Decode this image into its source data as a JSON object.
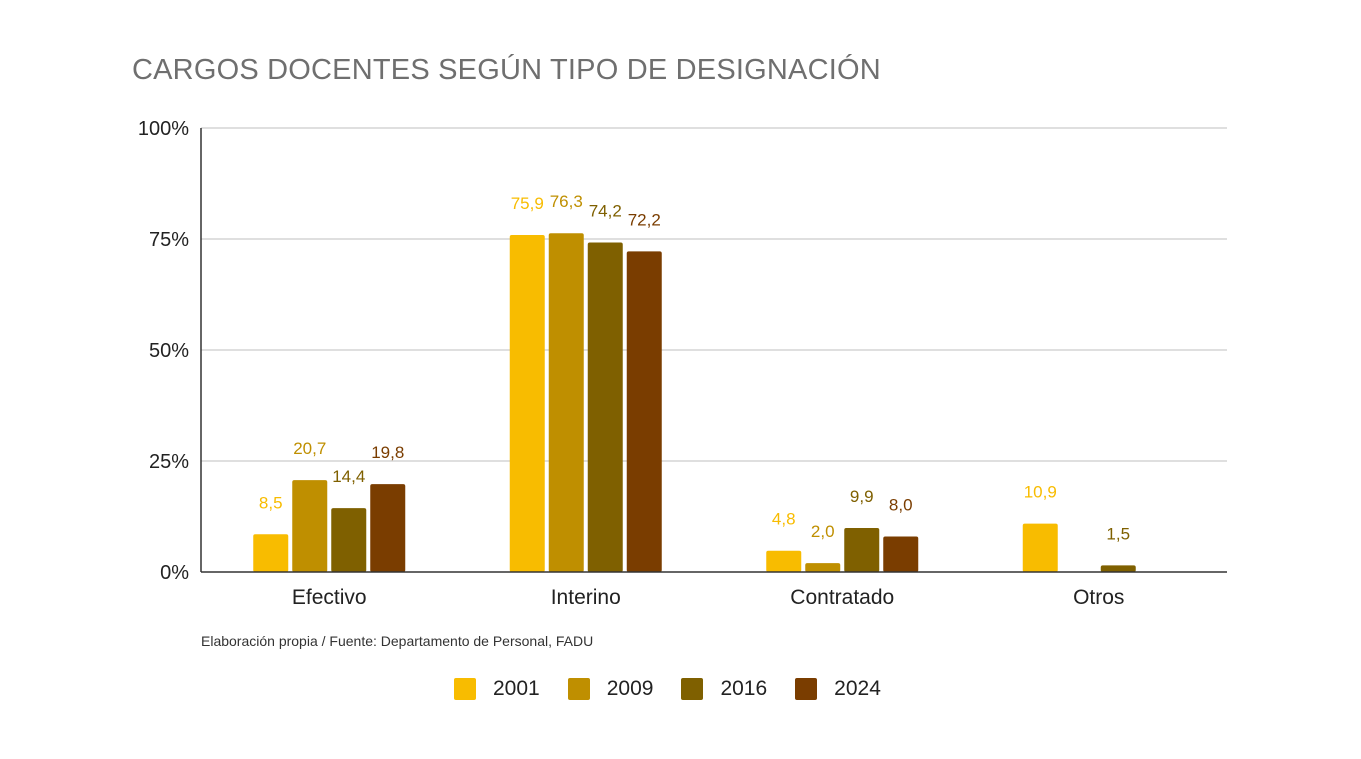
{
  "chart_data": {
    "type": "bar",
    "title": "CARGOS DOCENTES SEGÚN TIPO DE DESIGNACIÓN",
    "xlabel": "",
    "ylabel": "",
    "categories": [
      "Efectivo",
      "Interino",
      "Contratado",
      "Otros"
    ],
    "series": [
      {
        "name": "2001",
        "color": "#f8bc00",
        "values": [
          8.5,
          75.9,
          4.8,
          10.9
        ],
        "labels": [
          "8,5",
          "75,9",
          "4,8",
          "10,9"
        ]
      },
      {
        "name": "2009",
        "color": "#bf8f00",
        "values": [
          20.7,
          76.3,
          2.0,
          null
        ],
        "labels": [
          "20,7",
          "76,3",
          "2,0",
          ""
        ]
      },
      {
        "name": "2016",
        "color": "#7f6000",
        "values": [
          14.4,
          74.2,
          9.9,
          1.5
        ],
        "labels": [
          "14,4",
          "74,2",
          "9,9",
          "1,5"
        ]
      },
      {
        "name": "2024",
        "color": "#7a3d00",
        "values": [
          19.8,
          72.2,
          8.0,
          null
        ],
        "labels": [
          "19,8",
          "72,2",
          "8,0",
          ""
        ]
      }
    ],
    "label_colors": [
      "#f8bc00",
      "#bf8f00",
      "#7f6000",
      "#7a3d00"
    ],
    "ylim": [
      0,
      100
    ],
    "yticks": [
      0,
      25,
      50,
      75,
      100
    ],
    "ytick_labels": [
      "0%",
      "25%",
      "50%",
      "75%",
      "100%"
    ],
    "grid": true,
    "legend_position": "bottom"
  },
  "source_note": "Elaboración propia / Fuente: Departamento de Personal, FADU"
}
